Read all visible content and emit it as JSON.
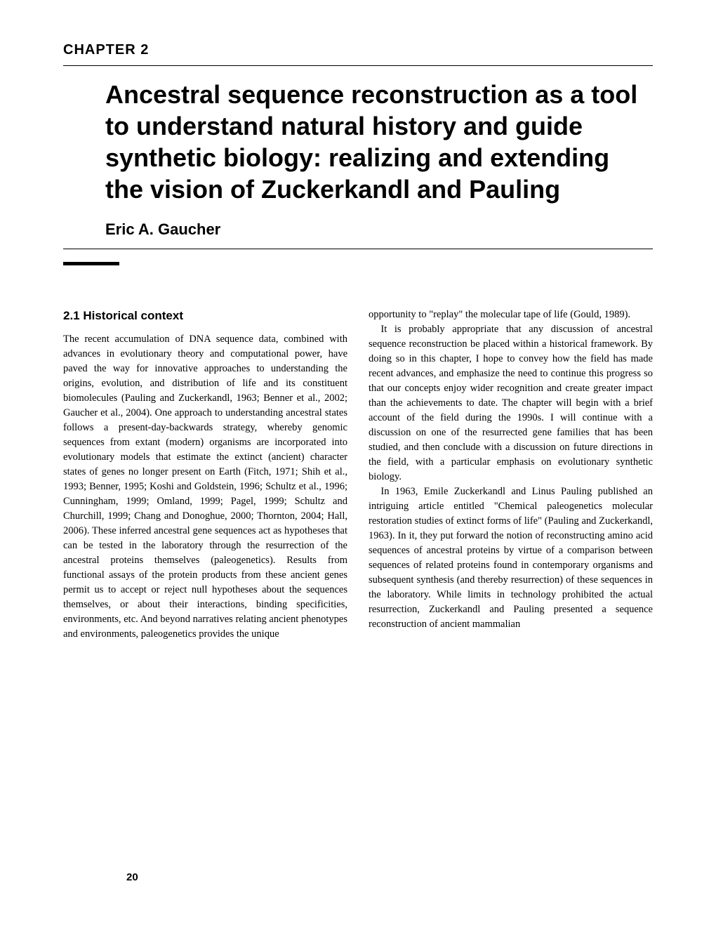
{
  "chapter_label": "CHAPTER 2",
  "chapter_title": "Ancestral sequence reconstruction as a tool to understand natural history and guide synthetic biology: realizing and extending the vision of Zuckerkandl and Pauling",
  "author": "Eric A. Gaucher",
  "section_heading": "2.1 Historical context",
  "col1_para1": "The recent accumulation of DNA sequence data, combined with advances in evolutionary theory and computational power, have paved the way for innovative approaches to understanding the origins, evolution, and distribution of life and its constituent biomolecules (Pauling and Zuckerkandl, 1963; Benner et al., 2002; Gaucher et al., 2004). One approach to understanding ancestral states follows a present-day-backwards strategy, whereby genomic sequences from extant (modern) organisms are incorporated into evolutionary models that estimate the extinct (ancient) character states of genes no longer present on Earth (Fitch, 1971; Shih et al., 1993; Benner, 1995; Koshi and Goldstein, 1996; Schultz et al., 1996; Cunningham, 1999; Omland, 1999; Pagel, 1999; Schultz and Churchill, 1999; Chang and Donoghue, 2000; Thornton, 2004; Hall, 2006). These inferred ancestral gene sequences act as hypotheses that can be tested in the laboratory through the resurrection of the ancestral proteins themselves (paleogenetics). Results from functional assays of the protein products from these ancient genes permit us to accept or reject null hypotheses about the sequences themselves, or about their interactions, binding specificities, environments, etc. And beyond narratives relating ancient phenotypes and environments, paleogenetics provides the unique",
  "col2_para1": "opportunity to \"replay\" the molecular tape of life (Gould, 1989).",
  "col2_para2": "It is probably appropriate that any discussion of ancestral sequence reconstruction be placed within a historical framework. By doing so in this chapter, I hope to convey how the field has made recent advances, and emphasize the need to continue this progress so that our concepts enjoy wider recognition and create greater impact than the achievements to date. The chapter will begin with a brief account of the field during the 1990s. I will continue with a discussion on one of the resurrected gene families that has been studied, and then conclude with a discussion on future directions in the field, with a particular emphasis on evolutionary synthetic biology.",
  "col2_para3": "In 1963, Emile Zuckerkandl and Linus Pauling published an intriguing article entitled \"Chemical paleogenetics molecular restoration studies of extinct forms of life\" (Pauling and Zuckerkandl, 1963). In it, they put forward the notion of reconstructing amino acid sequences of ancestral proteins by virtue of a comparison between sequences of related proteins found in contemporary organisms and subsequent synthesis (and thereby resurrection) of these sequences in the laboratory. While limits in technology prohibited the actual resurrection, Zuckerkandl and Pauling presented a sequence reconstruction of ancient mammalian",
  "page_number": "20",
  "colors": {
    "background": "#ffffff",
    "text": "#000000",
    "rule": "#000000"
  },
  "typography": {
    "chapter_label_size": 20,
    "title_size": 36,
    "author_size": 22,
    "heading_size": 17,
    "body_size": 14.5,
    "page_num_size": 15
  }
}
